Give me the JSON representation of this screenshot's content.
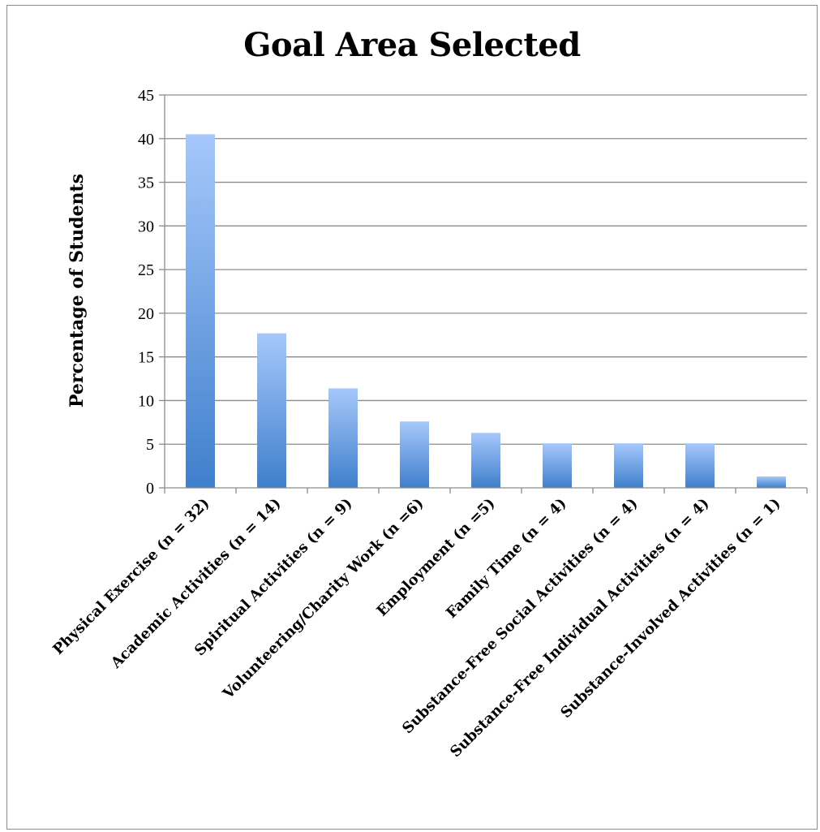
{
  "chart_data": {
    "type": "bar",
    "title": "Goal Area Selected",
    "xlabel": "",
    "ylabel": "Percentage of Students",
    "ylim": [
      0,
      45
    ],
    "yticks": [
      0,
      5,
      10,
      15,
      20,
      25,
      30,
      35,
      40,
      45
    ],
    "grid": true,
    "legend": "none",
    "categories": [
      "Physical Exercise (n = 32)",
      "Academic Activities (n = 14)",
      "Spiritual Activities (n = 9)",
      "Volunteering/Charity Work (n =6)",
      "Employment (n =5)",
      "Family Time (n = 4)",
      "Substance-Free Social Activities (n = 4)",
      "Substance-Free Individual Activities (n = 4)",
      "Substance-Involved Activities (n = 1)"
    ],
    "values": [
      40.5,
      17.7,
      11.4,
      7.6,
      6.3,
      5.1,
      5.1,
      5.1,
      1.3
    ],
    "colors": {
      "bar_top": "#a6c8fb",
      "bar_bottom": "#3f7fcc",
      "grid": "#8c8c8c",
      "axis": "#8c8c8c"
    }
  }
}
